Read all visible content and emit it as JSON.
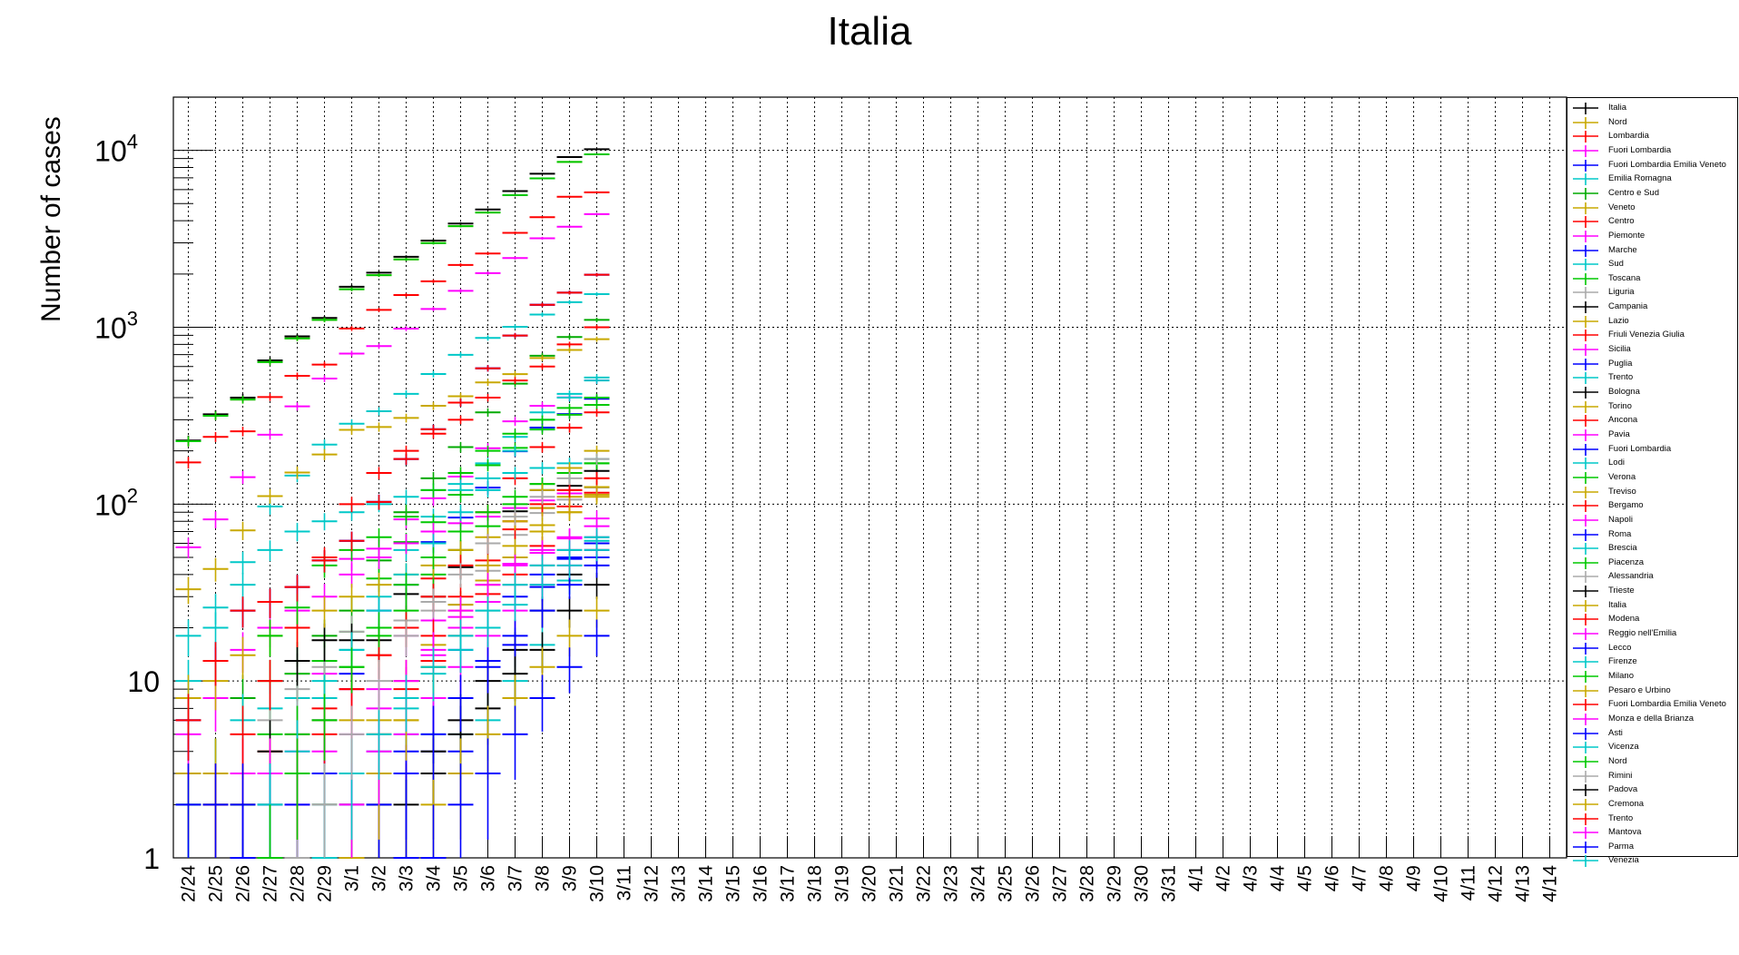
{
  "chart_data": {
    "type": "scatter",
    "title": "Italia",
    "ylabel": "Number of cases",
    "xlabel": "",
    "y_scale": "log",
    "ylim": [
      1,
      20000
    ],
    "y_ticks": [
      {
        "value": 1,
        "base": "1",
        "exp": ""
      },
      {
        "value": 10,
        "base": "10",
        "exp": ""
      },
      {
        "value": 100,
        "base": "10",
        "exp": "2"
      },
      {
        "value": 1000,
        "base": "10",
        "exp": "3"
      },
      {
        "value": 10000,
        "base": "10",
        "exp": "4"
      }
    ],
    "grid": true,
    "legend_placement": "right",
    "categories": [
      "2/24",
      "2/25",
      "2/26",
      "2/27",
      "2/28",
      "2/29",
      "3/1",
      "3/2",
      "3/3",
      "3/4",
      "3/5",
      "3/6",
      "3/7",
      "3/8",
      "3/9",
      "3/10",
      "3/11",
      "3/12",
      "3/13",
      "3/14",
      "3/15",
      "3/16",
      "3/17",
      "3/18",
      "3/19",
      "3/20",
      "3/21",
      "3/22",
      "3/23",
      "3/24",
      "3/25",
      "3/26",
      "3/27",
      "3/28",
      "3/29",
      "3/30",
      "3/31",
      "4/1",
      "4/2",
      "4/3",
      "4/4",
      "4/5",
      "4/6",
      "4/7",
      "4/8",
      "4/9",
      "4/10",
      "4/11",
      "4/12",
      "4/13",
      "4/14"
    ],
    "series": [
      {
        "name": "Italia",
        "color": "#000000",
        "values": [
          229,
          322,
          400,
          650,
          888,
          1128,
          1694,
          2036,
          2502,
          3089,
          3858,
          4636,
          5883,
          7375,
          9172,
          10149
        ]
      },
      {
        "name": "Nord",
        "color": "#c8a800",
        "values": [
          227,
          316,
          390,
          635,
          865,
          1100,
          1640,
          1970,
          2420,
          2990,
          3730,
          4450,
          5580,
          6950,
          8600,
          9500
        ]
      },
      {
        "name": "Lombardia",
        "color": "#ff0000",
        "values": [
          172,
          240,
          258,
          403,
          531,
          615,
          984,
          1254,
          1520,
          1820,
          2251,
          2612,
          3420,
          4189,
          5469,
          5791
        ]
      },
      {
        "name": "Fuori Lombardia",
        "color": "#ff00ff",
        "values": [
          57,
          82,
          142,
          247,
          357,
          513,
          710,
          782,
          982,
          1269,
          1607,
          2024,
          2463,
          3186,
          3703,
          4358
        ]
      },
      {
        "name": "Fuori Lombardia Emilia Veneto",
        "color": "#0000ff",
        "values": [
          6,
          13,
          25,
          28,
          34,
          48,
          62,
          103,
          180,
          265,
          375,
          586,
          897,
          1340,
          1570,
          1980
        ]
      },
      {
        "name": "Emilia Romagna",
        "color": "#00c8c8",
        "values": [
          18,
          26,
          47,
          97,
          145,
          217,
          285,
          335,
          420,
          544,
          698,
          870,
          1006,
          1180,
          1386,
          1540
        ]
      },
      {
        "name": "Centro e Sud",
        "color": "#00aa00",
        "values": [
          2,
          3,
          8,
          10,
          13,
          18,
          25,
          48,
          90,
          140,
          210,
          330,
          480,
          690,
          880,
          1100
        ]
      },
      {
        "name": "Veneto",
        "color": "#c8a800",
        "values": [
          33,
          43,
          71,
          111,
          151,
          191,
          263,
          273,
          307,
          360,
          407,
          488,
          543,
          670,
          744,
          856
        ]
      },
      {
        "name": "Centro",
        "color": "#ff0000",
        "values": [
          null,
          null,
          2,
          4,
          5,
          7,
          9,
          14,
          22,
          38,
          55,
          90,
          140,
          210,
          270,
          330
        ]
      },
      {
        "name": "Piemonte",
        "color": "#ff00ff",
        "values": [
          null,
          null,
          null,
          3,
          11,
          11,
          49,
          56,
          82,
          108,
          143,
          207,
          294,
          360,
          401,
          501
        ]
      },
      {
        "name": "Marche",
        "color": "#0000ff",
        "values": [
          null,
          null,
          null,
          1,
          1,
          6,
          11,
          25,
          35,
          61,
          84,
          124,
          199,
          271,
          323,
          394
        ]
      },
      {
        "name": "Sud",
        "color": "#00c8c8",
        "values": [
          2,
          3,
          6,
          7,
          8,
          10,
          15,
          30,
          55,
          85,
          120,
          170,
          240,
          330,
          420,
          520
        ]
      },
      {
        "name": "Toscana",
        "color": "#00c800",
        "values": [
          null,
          2,
          2,
          5,
          11,
          13,
          19,
          38,
          61,
          79,
          113,
          166,
          208,
          264,
          320,
          364
        ]
      },
      {
        "name": "Liguria",
        "color": "#aaaaaa",
        "values": [
          null,
          null,
          1,
          6,
          9,
          12,
          19,
          20,
          22,
          25,
          27,
          42,
          67,
          89,
          106,
          124
        ]
      },
      {
        "name": "Campania",
        "color": "#000000",
        "values": [
          null,
          null,
          1,
          4,
          13,
          17,
          17,
          17,
          31,
          30,
          44,
          60,
          91,
          120,
          127,
          154
        ]
      },
      {
        "name": "Lazio",
        "color": "#c8a800",
        "values": [
          3,
          3,
          3,
          3,
          3,
          6,
          6,
          6,
          6,
          16,
          27,
          37,
          58,
          76,
          90,
          113
        ]
      },
      {
        "name": "Friuli Venezia Giulia",
        "color": "#ff0000",
        "values": [
          null,
          null,
          null,
          null,
          null,
          null,
          null,
          null,
          9,
          13,
          18,
          31,
          40,
          58,
          97,
          116
        ]
      },
      {
        "name": "Sicilia",
        "color": "#ff00ff",
        "values": [
          null,
          null,
          3,
          3,
          4,
          4,
          9,
          9,
          18,
          22,
          23,
          35,
          46,
          53,
          64,
          83
        ]
      },
      {
        "name": "Puglia",
        "color": "#0000ff",
        "values": [
          null,
          null,
          1,
          1,
          3,
          3,
          3,
          3,
          4,
          4,
          4,
          13,
          16,
          34,
          49,
          50
        ]
      },
      {
        "name": "Trento",
        "color": "#00c8c8",
        "values": [
          null,
          null,
          null,
          null,
          null,
          null,
          null,
          null,
          5,
          5,
          5,
          6,
          10,
          16,
          37,
          62
        ]
      },
      {
        "name": "Bologna",
        "color": "#000000",
        "values": [
          null,
          null,
          null,
          1,
          1,
          2,
          2,
          2,
          3,
          4,
          6,
          10,
          15,
          25,
          40,
          55
        ]
      },
      {
        "name": "Torino",
        "color": "#c8a800",
        "values": [
          null,
          null,
          null,
          null,
          1,
          2,
          3,
          5,
          8,
          12,
          20,
          35,
          50,
          70,
          90,
          110
        ]
      },
      {
        "name": "Ancona",
        "color": "#ff0000",
        "values": [
          null,
          null,
          null,
          null,
          null,
          1,
          2,
          5,
          10,
          18,
          30,
          48,
          72,
          95,
          120,
          140
        ]
      },
      {
        "name": "Pavia",
        "color": "#ff00ff",
        "values": [
          5,
          8,
          15,
          20,
          25,
          30,
          40,
          50,
          60,
          70,
          78,
          85,
          95,
          105,
          115,
          125
        ]
      },
      {
        "name": "Fuori Lombardia",
        "color": "#0000ff",
        "values": [
          6,
          13,
          25,
          28,
          34,
          48,
          62,
          103,
          180,
          265,
          375,
          586,
          897,
          1340,
          1570,
          1980
        ]
      },
      {
        "name": "Lodi",
        "color": "#00c8c8",
        "values": [
          10,
          20,
          35,
          55,
          70,
          80,
          90,
          100,
          110,
          120,
          130,
          140,
          150,
          160,
          170,
          180
        ]
      },
      {
        "name": "Verona",
        "color": "#00c800",
        "values": [
          null,
          null,
          null,
          2,
          5,
          8,
          12,
          18,
          25,
          40,
          55,
          75,
          100,
          130,
          150,
          170
        ]
      },
      {
        "name": "Treviso",
        "color": "#c8a800",
        "values": [
          8,
          10,
          14,
          18,
          20,
          25,
          30,
          35,
          40,
          45,
          55,
          65,
          80,
          95,
          110,
          125
        ]
      },
      {
        "name": "Bergamo",
        "color": "#ff0000",
        "values": [
          null,
          2,
          5,
          10,
          20,
          50,
          100,
          150,
          200,
          250,
          300,
          400,
          500,
          600,
          800,
          1000
        ]
      },
      {
        "name": "Napoli",
        "color": "#ff00ff",
        "values": [
          null,
          null,
          null,
          null,
          2,
          3,
          5,
          7,
          10,
          14,
          20,
          28,
          35,
          45,
          55,
          65
        ]
      },
      {
        "name": "Roma",
        "color": "#0000ff",
        "values": [
          2,
          2,
          2,
          2,
          2,
          3,
          3,
          3,
          3,
          8,
          15,
          20,
          30,
          40,
          50,
          60
        ]
      },
      {
        "name": "Brescia",
        "color": "#00c8c8",
        "values": [
          null,
          null,
          null,
          2,
          4,
          8,
          15,
          25,
          40,
          60,
          90,
          120,
          200,
          300,
          400,
          500
        ]
      },
      {
        "name": "Piacenza",
        "color": "#00c800",
        "values": [
          null,
          null,
          null,
          18,
          26,
          45,
          55,
          65,
          85,
          120,
          150,
          200,
          250,
          300,
          350,
          400
        ]
      },
      {
        "name": "Alessandria",
        "color": "#aaaaaa",
        "values": [
          null,
          null,
          null,
          null,
          1,
          2,
          3,
          5,
          8,
          12,
          18,
          25,
          35,
          45,
          55,
          65
        ]
      },
      {
        "name": "Trieste",
        "color": "#000000",
        "values": [
          null,
          null,
          null,
          null,
          null,
          null,
          null,
          null,
          2,
          3,
          5,
          7,
          11,
          15,
          25,
          35
        ]
      },
      {
        "name": "Italia",
        "color": "#c8a800",
        "values": [
          null,
          null,
          null,
          null,
          null,
          null,
          null,
          null,
          1,
          2,
          3,
          5,
          8,
          12,
          18,
          25
        ]
      },
      {
        "name": "Modena",
        "color": "#ff0000",
        "values": [
          null,
          null,
          null,
          null,
          3,
          5,
          9,
          14,
          20,
          30,
          45,
          60,
          80,
          100,
          120,
          140
        ]
      },
      {
        "name": "Reggio nell'Emilia",
        "color": "#ff00ff",
        "values": [
          null,
          null,
          null,
          null,
          null,
          1,
          2,
          3,
          5,
          8,
          12,
          18,
          25,
          35,
          45,
          55
        ]
      },
      {
        "name": "Lecco",
        "color": "#0000ff",
        "values": [
          null,
          null,
          null,
          null,
          null,
          null,
          1,
          2,
          3,
          5,
          8,
          12,
          18,
          25,
          35,
          45
        ]
      },
      {
        "name": "Firenze",
        "color": "#00c8c8",
        "values": [
          null,
          null,
          null,
          null,
          null,
          1,
          2,
          4,
          7,
          11,
          15,
          20,
          27,
          35,
          45,
          55
        ]
      },
      {
        "name": "Milano",
        "color": "#00c800",
        "values": [
          null,
          null,
          null,
          1,
          3,
          6,
          12,
          20,
          35,
          50,
          70,
          90,
          110,
          130,
          150,
          170
        ]
      },
      {
        "name": "Pesaro e Urbino",
        "color": "#c8a800",
        "values": [
          null,
          null,
          null,
          null,
          null,
          null,
          1,
          3,
          6,
          12,
          25,
          45,
          80,
          120,
          160,
          200
        ]
      },
      {
        "name": "Fuori Lombardia Emilia Veneto",
        "color": "#ff0000",
        "values": [
          6,
          13,
          25,
          28,
          34,
          48,
          62,
          103,
          180,
          265,
          375,
          586,
          897,
          1340,
          1570,
          1980
        ]
      },
      {
        "name": "Monza e della Brianza",
        "color": "#ff00ff",
        "values": [
          null,
          null,
          null,
          null,
          null,
          null,
          2,
          4,
          8,
          15,
          25,
          35,
          45,
          55,
          65,
          75
        ]
      },
      {
        "name": "Asti",
        "color": "#0000ff",
        "values": [
          null,
          null,
          null,
          null,
          null,
          null,
          null,
          null,
          1,
          1,
          2,
          3,
          5,
          8,
          12,
          18
        ]
      },
      {
        "name": "Vicenza",
        "color": "#00c8c8",
        "values": [
          null,
          null,
          null,
          null,
          null,
          2,
          3,
          5,
          8,
          12,
          18,
          25,
          35,
          45,
          55,
          65
        ]
      },
      {
        "name": "Nord",
        "color": "#00c800",
        "values": [
          227,
          316,
          390,
          635,
          865,
          1100,
          1640,
          1970,
          2420,
          2990,
          3730,
          4450,
          5580,
          6950,
          8600,
          9500
        ]
      },
      {
        "name": "Rimini",
        "color": "#aaaaaa",
        "values": [
          null,
          null,
          null,
          null,
          null,
          2,
          5,
          10,
          18,
          28,
          40,
          60,
          85,
          110,
          140,
          180
        ]
      },
      {
        "name": "Padova",
        "color": "#000000",
        "values": [
          null,
          null,
          null,
          null,
          null,
          null,
          null,
          null,
          null,
          null,
          null,
          null,
          null,
          null,
          null,
          null
        ]
      },
      {
        "name": "Cremona",
        "color": "#c8a800",
        "values": [
          null,
          null,
          null,
          null,
          null,
          null,
          null,
          null,
          null,
          null,
          null,
          null,
          null,
          null,
          null,
          null
        ]
      },
      {
        "name": "Trento",
        "color": "#ff0000",
        "values": [
          null,
          null,
          null,
          null,
          null,
          null,
          null,
          null,
          null,
          null,
          null,
          null,
          null,
          null,
          null,
          null
        ]
      },
      {
        "name": "Mantova",
        "color": "#ff00ff",
        "values": [
          null,
          null,
          null,
          null,
          null,
          null,
          null,
          null,
          null,
          null,
          null,
          null,
          null,
          null,
          null,
          null
        ]
      },
      {
        "name": "Parma",
        "color": "#0000ff",
        "values": [
          null,
          null,
          null,
          null,
          null,
          null,
          null,
          null,
          null,
          null,
          null,
          null,
          null,
          null,
          null,
          null
        ]
      },
      {
        "name": "Venezia",
        "color": "#00c8c8",
        "values": [
          null,
          null,
          null,
          null,
          null,
          null,
          null,
          null,
          null,
          null,
          null,
          null,
          null,
          null,
          null,
          null
        ]
      }
    ]
  }
}
